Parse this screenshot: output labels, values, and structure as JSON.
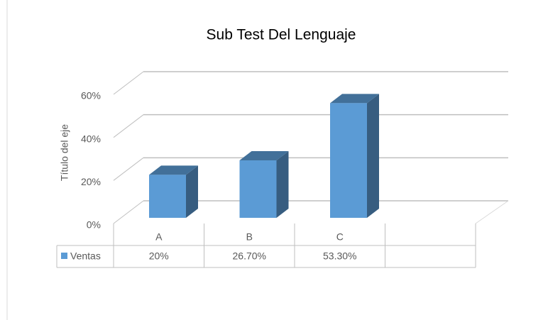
{
  "chart_data": {
    "type": "bar3d",
    "title": "Sub Test Del Lenguaje",
    "y_axis_label": "Título del eje",
    "categories": [
      "A",
      "B",
      "C",
      null
    ],
    "series": [
      {
        "name": "Ventas",
        "color": "#5b9bd5",
        "values": [
          20,
          26.7,
          53.3,
          null
        ],
        "value_labels": [
          "20%",
          "26.70%",
          "53.30%",
          null
        ]
      }
    ],
    "ylim": [
      0,
      60
    ],
    "yticks": [
      {
        "value": 0,
        "label": "0%"
      },
      {
        "value": 20,
        "label": "20%"
      },
      {
        "value": 40,
        "label": "40%"
      },
      {
        "value": 60,
        "label": "60%"
      }
    ],
    "grid": true,
    "data_table": true
  }
}
